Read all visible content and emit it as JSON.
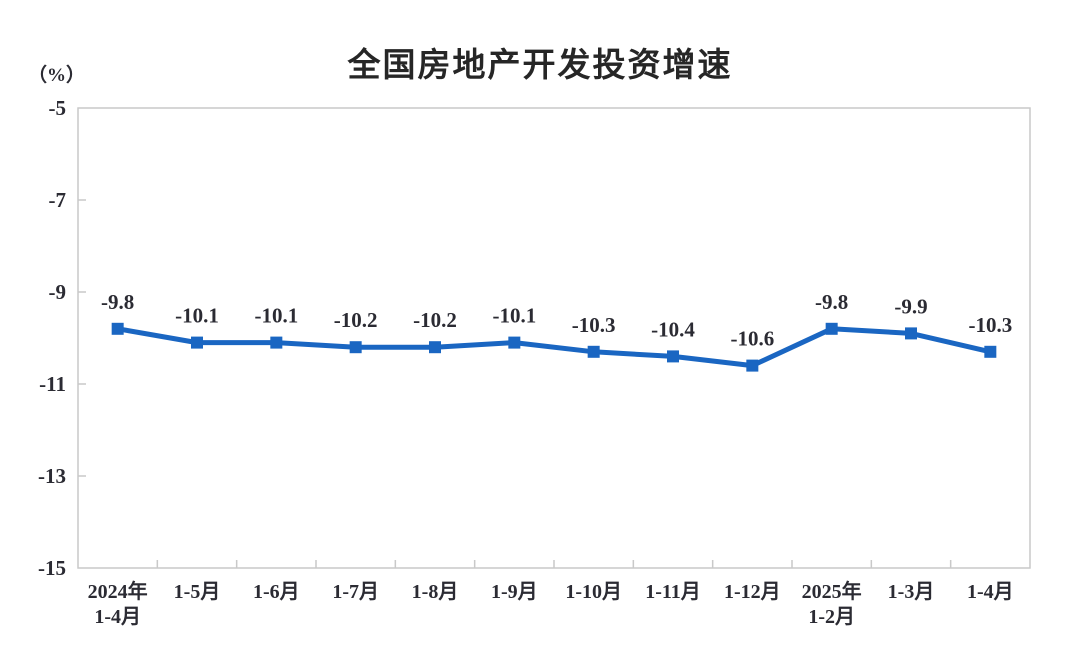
{
  "chart_data": {
    "type": "line",
    "title": "全国房地产开发投资增速",
    "ylabel": "（%）",
    "xlabel": "",
    "categories": [
      [
        "2024年",
        "1-4月"
      ],
      [
        "1-5月"
      ],
      [
        "1-6月"
      ],
      [
        "1-7月"
      ],
      [
        "1-8月"
      ],
      [
        "1-9月"
      ],
      [
        "1-10月"
      ],
      [
        "1-11月"
      ],
      [
        "1-12月"
      ],
      [
        "2025年",
        "1-2月"
      ],
      [
        "1-3月"
      ],
      [
        "1-4月"
      ]
    ],
    "values": [
      -9.8,
      -10.1,
      -10.1,
      -10.2,
      -10.2,
      -10.1,
      -10.3,
      -10.4,
      -10.6,
      -9.8,
      -9.9,
      -10.3
    ],
    "point_labels": [
      "-9.8",
      "-10.1",
      "-10.1",
      "-10.2",
      "-10.2",
      "-10.1",
      "-10.3",
      "-10.4",
      "-10.6",
      "-9.8",
      "-9.9",
      "-10.3"
    ],
    "ylim": [
      -15,
      -5
    ],
    "yticks": [
      -5,
      -7,
      -9,
      -11,
      -13,
      -15
    ],
    "grid": false,
    "legend": "none",
    "line_color": "#1a66c2",
    "marker": "square",
    "marker_size": 12,
    "frame_color": "#c9c9c9",
    "text_color": "#2b2b33"
  }
}
